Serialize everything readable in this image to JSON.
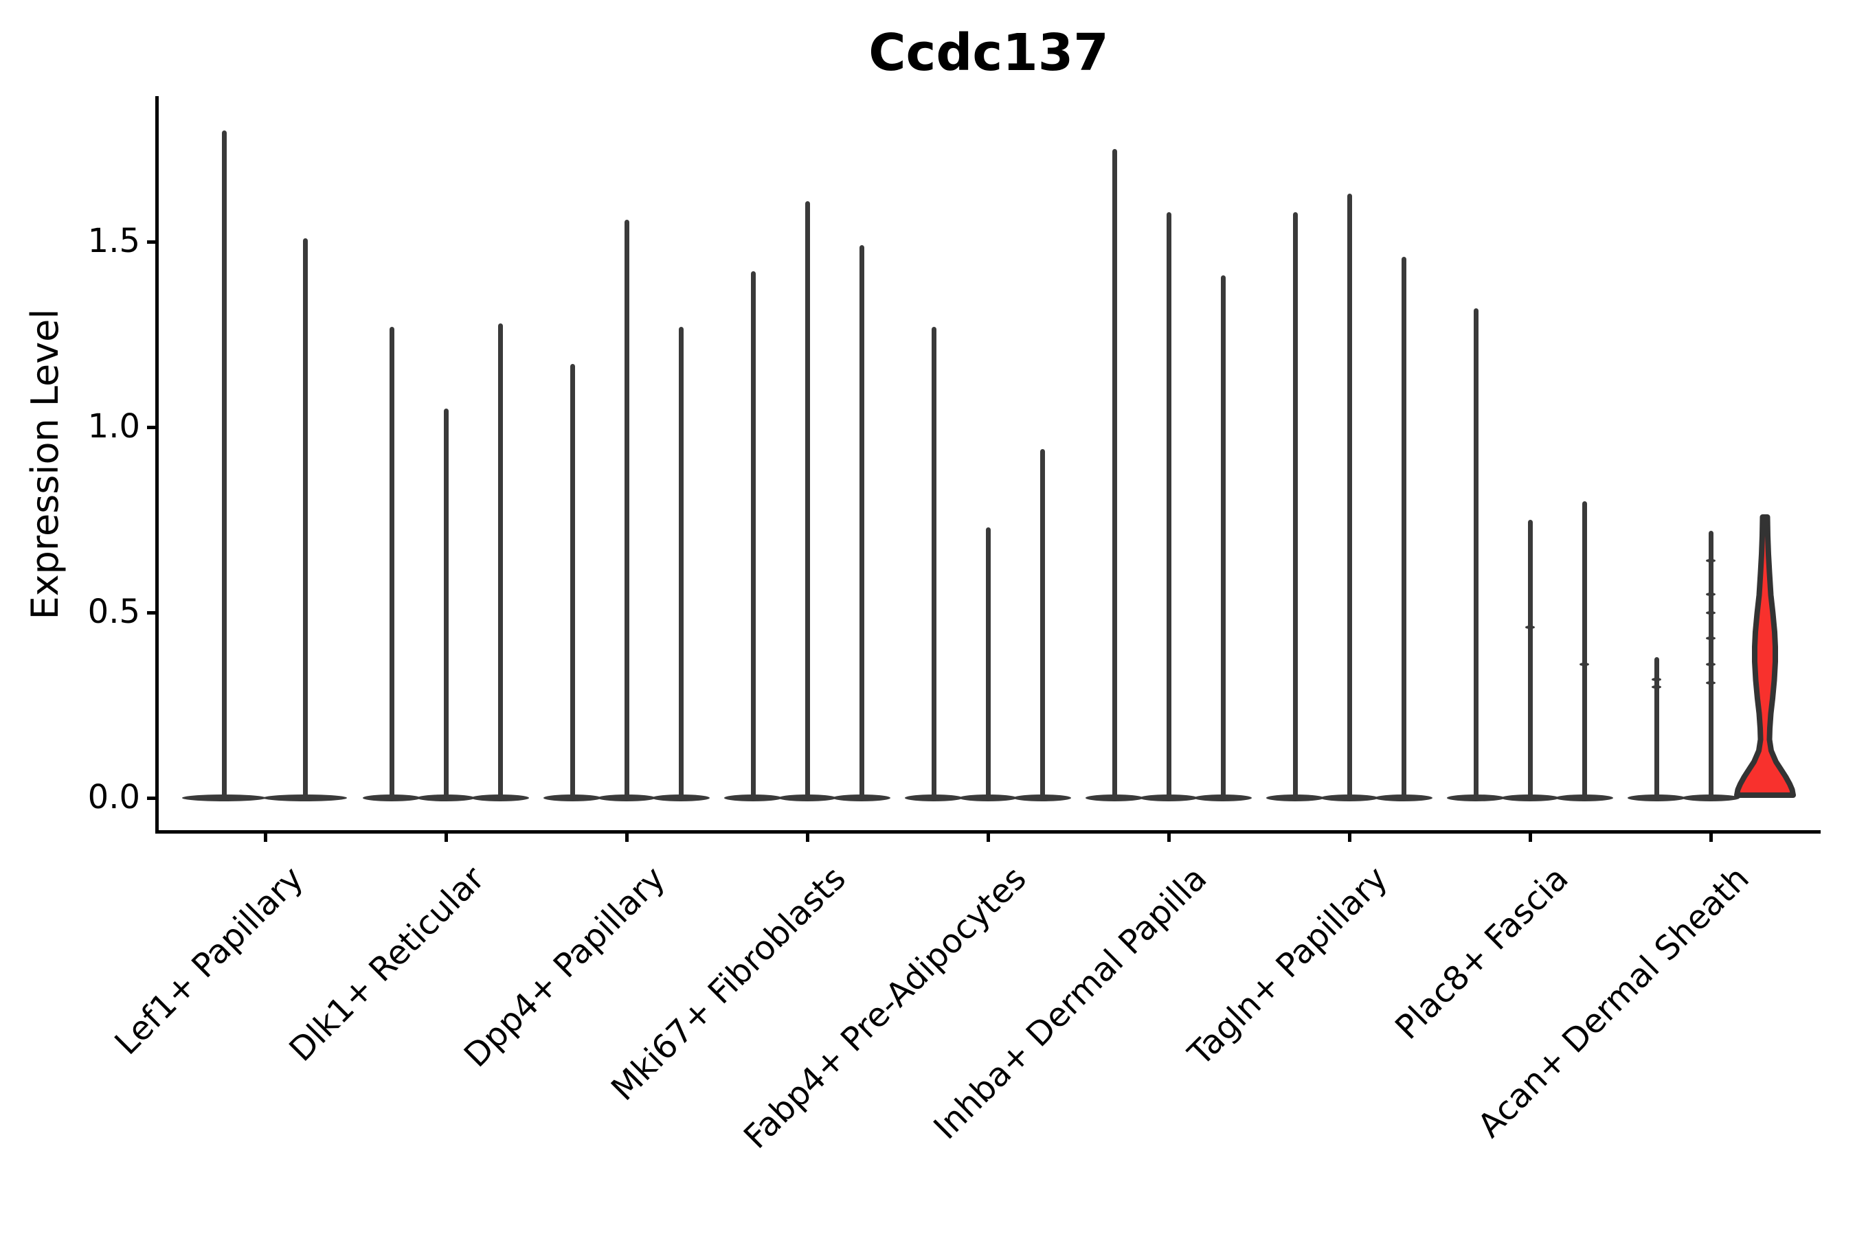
{
  "chart_data": {
    "type": "violin",
    "title": "Ccdc137",
    "ylabel": "Expression Level",
    "xlabel": "",
    "yticks": [
      "0.0",
      "0.5",
      "1.0",
      "1.5"
    ],
    "ytick_values": [
      0.0,
      0.5,
      1.0,
      1.5
    ],
    "ylim": [
      -0.09,
      1.89
    ],
    "grid": false,
    "legend": "none",
    "violin_color": "#3a3a3a",
    "outline_color": "#333333",
    "highlight_fill": "#f8312d",
    "categories": [
      "Lef1+ Papillary",
      "Dlk1+ Reticular",
      "Dpp4+ Papillary",
      "Mki67+ Fibroblasts",
      "Fabp4+ Pre-Adipocytes",
      "Inhba+ Dermal Papilla",
      "Tagln+ Papillary",
      "Plac8+ Fascia",
      "Acan+ Dermal Sheath"
    ],
    "groups": [
      {
        "category": "Lef1+ Papillary",
        "violins": [
          {
            "max": 1.8
          },
          {
            "max": 1.51
          }
        ]
      },
      {
        "category": "Dlk1+ Reticular",
        "violins": [
          {
            "max": 1.27
          },
          {
            "max": 1.05
          },
          {
            "max": 1.28
          }
        ]
      },
      {
        "category": "Dpp4+ Papillary",
        "violins": [
          {
            "max": 1.17
          },
          {
            "max": 1.56
          },
          {
            "max": 1.27
          }
        ]
      },
      {
        "category": "Mki67+ Fibroblasts",
        "violins": [
          {
            "max": 1.42
          },
          {
            "max": 1.61
          },
          {
            "max": 1.49
          }
        ]
      },
      {
        "category": "Fabp4+ Pre-Adipocytes",
        "violins": [
          {
            "max": 1.27
          },
          {
            "max": 0.73
          },
          {
            "max": 0.94
          }
        ]
      },
      {
        "category": "Inhba+ Dermal Papilla",
        "violins": [
          {
            "max": 1.75
          },
          {
            "max": 1.58
          },
          {
            "max": 1.41
          }
        ]
      },
      {
        "category": "Tagln+ Papillary",
        "violins": [
          {
            "max": 1.58
          },
          {
            "max": 1.63
          },
          {
            "max": 1.46
          }
        ]
      },
      {
        "category": "Plac8+ Fascia",
        "violins": [
          {
            "max": 1.32
          },
          {
            "max": 0.75,
            "marks": [
              0.46
            ]
          },
          {
            "max": 0.8,
            "marks": [
              0.36
            ]
          }
        ]
      },
      {
        "category": "Acan+ Dermal Sheath",
        "violins": [
          {
            "max": 0.38,
            "marks": [
              0.3,
              0.32
            ]
          },
          {
            "max": 0.72,
            "marks": [
              0.31,
              0.36,
              0.43,
              0.5,
              0.55,
              0.64
            ]
          },
          {
            "max": 0.75,
            "highlight": true,
            "profile": [
              [
                0.75,
                3.5
              ],
              [
                0.7,
                4
              ],
              [
                0.65,
                5
              ],
              [
                0.6,
                6.5
              ],
              [
                0.54,
                8.5
              ],
              [
                0.49,
                11.5
              ],
              [
                0.44,
                14
              ],
              [
                0.4,
                15
              ],
              [
                0.36,
                15
              ],
              [
                0.31,
                13.5
              ],
              [
                0.26,
                11
              ],
              [
                0.22,
                8.5
              ],
              [
                0.18,
                7
              ],
              [
                0.15,
                6.5
              ],
              [
                0.12,
                9
              ],
              [
                0.09,
                16
              ],
              [
                0.07,
                23
              ],
              [
                0.05,
                30
              ],
              [
                0.03,
                36
              ],
              [
                0.015,
                39.5
              ],
              [
                0.0,
                41
              ]
            ]
          }
        ]
      }
    ]
  }
}
